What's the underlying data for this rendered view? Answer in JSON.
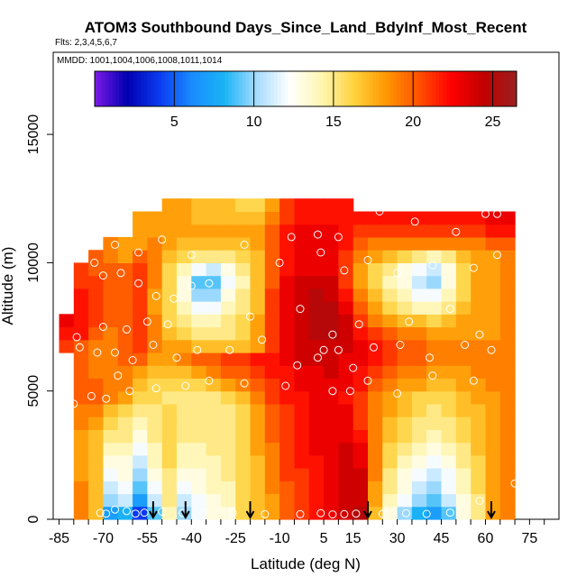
{
  "chart_data": {
    "type": "heatmap",
    "title": "ATOM3 Southbound Days_Since_Land_BdyInf_Most_Recent",
    "subtitle": "Flts: 2,3,4,5,6,7",
    "annotation": "MMDD: 1001,1004,1006,1008,1011,1014",
    "xlabel": "Latitude (deg N)",
    "ylabel": "Altitude (m)",
    "xlim": [
      -87,
      85
    ],
    "ylim": [
      0,
      18200
    ],
    "x_ticks": [
      -85,
      -70,
      -55,
      -40,
      -25,
      -10,
      5,
      15,
      30,
      45,
      60,
      75
    ],
    "x_minor_ticks": [
      -85,
      -80,
      -75,
      -70,
      -65,
      -60,
      -55,
      -50,
      -45,
      -40,
      -35,
      -30,
      -25,
      -20,
      -15,
      -10,
      -5,
      0,
      5,
      10,
      15,
      20,
      25,
      30,
      35,
      40,
      45,
      50,
      55,
      60,
      65,
      70,
      75,
      80
    ],
    "y_ticks": [
      0,
      5000,
      10000,
      15000
    ],
    "colorbar": {
      "ticks": [
        5,
        10,
        15,
        20,
        25
      ],
      "min": 0,
      "max": 26.5,
      "colors": [
        "#7d1ae8",
        "#0000b0",
        "#0a3cf0",
        "#1a8cff",
        "#1ab4f5",
        "#a8dcff",
        "#ffffff",
        "#fff6b0",
        "#ffd23c",
        "#ff9600",
        "#ff5000",
        "#ff0000",
        "#c00000",
        "#9b2020"
      ]
    },
    "lat_bins": [
      -82.5,
      -77.5,
      -72.5,
      -67.5,
      -62.5,
      -57.5,
      -52.5,
      -47.5,
      -42.5,
      -37.5,
      -32.5,
      -27.5,
      -22.5,
      -17.5,
      -12.5,
      -7.5,
      -2.5,
      2.5,
      7.5,
      12.5,
      17.5,
      22.5,
      27.5,
      32.5,
      37.5,
      42.5,
      47.5,
      52.5,
      57.5,
      62.5,
      67.5
    ],
    "alt_bins": [
      250,
      750,
      1250,
      1750,
      2250,
      2750,
      3250,
      3750,
      4250,
      4750,
      5250,
      5750,
      6250,
      6750,
      7250,
      7750,
      8250,
      8750,
      9250,
      9750,
      10250,
      10750,
      11250,
      11750,
      12250
    ],
    "values": [
      [
        null,
        19,
        17,
        7,
        8,
        4,
        9,
        14,
        10,
        12,
        13,
        13,
        16,
        17,
        18,
        20,
        21,
        22,
        23,
        24,
        25,
        17,
        13,
        10,
        8,
        7,
        9,
        13,
        15,
        18,
        19
      ],
      [
        null,
        19,
        17,
        10,
        11,
        7,
        11,
        15,
        11,
        12,
        13,
        14,
        16,
        17,
        18,
        20,
        21,
        22,
        23,
        24,
        24,
        18,
        14,
        12,
        10,
        9,
        11,
        13,
        15,
        18,
        19
      ],
      [
        null,
        19,
        17,
        11,
        12,
        9,
        12,
        15,
        12,
        13,
        14,
        14,
        16,
        17,
        19,
        20,
        21,
        22,
        23,
        24,
        24,
        18,
        15,
        13,
        11,
        10,
        12,
        14,
        16,
        18,
        19
      ],
      [
        null,
        18,
        17,
        12,
        13,
        10,
        13,
        15,
        13,
        13,
        14,
        15,
        16,
        17,
        19,
        21,
        21,
        22,
        23,
        24,
        24,
        19,
        15,
        13,
        12,
        11,
        12,
        14,
        16,
        18,
        19
      ],
      [
        null,
        18,
        17,
        13,
        13,
        11,
        14,
        16,
        14,
        14,
        14,
        15,
        16,
        17,
        19,
        21,
        22,
        22,
        23,
        24,
        23,
        19,
        16,
        14,
        13,
        12,
        13,
        15,
        16,
        18,
        19
      ],
      [
        null,
        18,
        17,
        14,
        14,
        12,
        14,
        16,
        14,
        14,
        15,
        15,
        16,
        18,
        19,
        21,
        22,
        23,
        23,
        24,
        23,
        19,
        16,
        15,
        14,
        13,
        14,
        15,
        17,
        18,
        19
      ],
      [
        null,
        18,
        17,
        15,
        15,
        13,
        15,
        16,
        15,
        15,
        15,
        15,
        16,
        18,
        20,
        21,
        22,
        23,
        23,
        23,
        22,
        19,
        17,
        16,
        15,
        14,
        15,
        16,
        17,
        18,
        19
      ],
      [
        null,
        19,
        18,
        16,
        15,
        14,
        15,
        16,
        15,
        15,
        15,
        15,
        16,
        18,
        20,
        21,
        22,
        23,
        23,
        23,
        21,
        19,
        17,
        16,
        15,
        15,
        15,
        16,
        17,
        18,
        19
      ],
      [
        null,
        19,
        19,
        17,
        16,
        15,
        15,
        16,
        15,
        15,
        15,
        15,
        16,
        18,
        20,
        21,
        22,
        23,
        23,
        23,
        21,
        19,
        18,
        17,
        16,
        15,
        16,
        17,
        17,
        18,
        19
      ],
      [
        null,
        20,
        20,
        19,
        18,
        16,
        16,
        15,
        15,
        15,
        15,
        16,
        17,
        19,
        21,
        22,
        22,
        23,
        23,
        22,
        21,
        19,
        18,
        17,
        16,
        16,
        16,
        17,
        18,
        18,
        19
      ],
      [
        null,
        20,
        20,
        19,
        19,
        17,
        16,
        16,
        16,
        16,
        17,
        18,
        19,
        20,
        21,
        22,
        23,
        23,
        23,
        23,
        22,
        20,
        19,
        18,
        18,
        17,
        17,
        18,
        18,
        19,
        19
      ],
      [
        null,
        20,
        19,
        19,
        19,
        18,
        17,
        17,
        17,
        18,
        19,
        20,
        20,
        21,
        22,
        22,
        23,
        23,
        24,
        23,
        22,
        21,
        20,
        19,
        19,
        18,
        18,
        18,
        19,
        19,
        19
      ],
      [
        null,
        20,
        19,
        19,
        20,
        20,
        18,
        18,
        19,
        20,
        20,
        21,
        21,
        22,
        22,
        23,
        24,
        24,
        24,
        23,
        23,
        22,
        21,
        20,
        20,
        19,
        19,
        19,
        19,
        19,
        19
      ],
      [
        21,
        20,
        19,
        19,
        20,
        21,
        19,
        18,
        18,
        17,
        17,
        17,
        17,
        18,
        21,
        23,
        24,
        24,
        24,
        24,
        23,
        22,
        21,
        20,
        20,
        19,
        19,
        19,
        19,
        19,
        19
      ],
      [
        22,
        22,
        20,
        19,
        20,
        21,
        19,
        17,
        16,
        15,
        15,
        15,
        16,
        18,
        21,
        23,
        24,
        25,
        25,
        24,
        22,
        21,
        20,
        19,
        19,
        18,
        18,
        18,
        18,
        18,
        19
      ],
      [
        23,
        22,
        21,
        20,
        20,
        21,
        19,
        16,
        15,
        14,
        14,
        15,
        16,
        18,
        21,
        23,
        24,
        25,
        25,
        24,
        21,
        19,
        18,
        17,
        17,
        16,
        17,
        18,
        18,
        18,
        19
      ],
      [
        null,
        22,
        21,
        20,
        20,
        21,
        18,
        16,
        14,
        12,
        12,
        14,
        15,
        17,
        21,
        23,
        24,
        25,
        25,
        23,
        20,
        18,
        16,
        15,
        14,
        14,
        15,
        17,
        18,
        18,
        19
      ],
      [
        null,
        22,
        21,
        20,
        20,
        21,
        18,
        16,
        13,
        10,
        10,
        13,
        15,
        17,
        21,
        23,
        24,
        25,
        24,
        22,
        19,
        17,
        15,
        14,
        12,
        12,
        14,
        16,
        18,
        18,
        19
      ],
      [
        null,
        21,
        21,
        20,
        20,
        21,
        19,
        16,
        13,
        9,
        9,
        12,
        14,
        17,
        20,
        23,
        24,
        24,
        24,
        21,
        18,
        16,
        14,
        13,
        11,
        10,
        13,
        16,
        18,
        18,
        19
      ],
      [
        null,
        21,
        20,
        20,
        20,
        21,
        19,
        16,
        14,
        12,
        11,
        13,
        15,
        17,
        20,
        22,
        23,
        23,
        23,
        21,
        18,
        16,
        15,
        13,
        12,
        11,
        13,
        16,
        18,
        18,
        19
      ],
      [
        null,
        null,
        20,
        19,
        18,
        20,
        19,
        17,
        16,
        15,
        15,
        15,
        16,
        17,
        20,
        22,
        23,
        23,
        23,
        21,
        19,
        18,
        17,
        16,
        15,
        14,
        15,
        17,
        18,
        18,
        19
      ],
      [
        null,
        null,
        null,
        19,
        18,
        18,
        19,
        18,
        17,
        17,
        17,
        17,
        17,
        18,
        20,
        22,
        23,
        23,
        23,
        22,
        20,
        19,
        19,
        19,
        19,
        19,
        19,
        19,
        19,
        20,
        20
      ],
      [
        null,
        null,
        null,
        null,
        null,
        18,
        18,
        18,
        18,
        18,
        18,
        18,
        18,
        18,
        20,
        22,
        23,
        23,
        23,
        22,
        21,
        21,
        21,
        21,
        21,
        21,
        21,
        21,
        21,
        22,
        22
      ],
      [
        null,
        null,
        null,
        null,
        null,
        18,
        18,
        18,
        18,
        17,
        17,
        17,
        17,
        17,
        19,
        21,
        22,
        22,
        22,
        22,
        22,
        22,
        22,
        22,
        22,
        22,
        22,
        22,
        22,
        23,
        23
      ],
      [
        null,
        null,
        null,
        null,
        null,
        null,
        null,
        18,
        18,
        17,
        17,
        17,
        16,
        16,
        18,
        21,
        22,
        22,
        22,
        22,
        null,
        null,
        null,
        null,
        null,
        null,
        null,
        null,
        null,
        null,
        null
      ]
    ],
    "observations": [
      [
        -71,
        250
      ],
      [
        -69,
        220
      ],
      [
        -66,
        380
      ],
      [
        -62,
        320
      ],
      [
        -59,
        220
      ],
      [
        -56,
        260
      ],
      [
        -50,
        300
      ],
      [
        -43,
        250
      ],
      [
        -36,
        260
      ],
      [
        -26,
        250
      ],
      [
        -15,
        200
      ],
      [
        -3,
        200
      ],
      [
        4,
        240
      ],
      [
        8,
        190
      ],
      [
        12,
        200
      ],
      [
        16,
        220
      ],
      [
        25,
        210
      ],
      [
        33,
        240
      ],
      [
        40,
        210
      ],
      [
        48,
        260
      ],
      [
        58,
        720
      ],
      [
        70,
        1400
      ],
      [
        -80,
        4500
      ],
      [
        -74,
        4800
      ],
      [
        -69,
        4700
      ],
      [
        -65,
        5600
      ],
      [
        -61,
        5000
      ],
      [
        -52,
        5100
      ],
      [
        -42,
        5200
      ],
      [
        -34,
        5400
      ],
      [
        -22,
        5300
      ],
      [
        -8,
        5200
      ],
      [
        8,
        5000
      ],
      [
        14,
        5000
      ],
      [
        20,
        5400
      ],
      [
        30,
        4900
      ],
      [
        42,
        5600
      ],
      [
        56,
        5400
      ],
      [
        -78,
        6700
      ],
      [
        -72,
        6500
      ],
      [
        -66,
        6500
      ],
      [
        -60,
        6200
      ],
      [
        -53,
        6800
      ],
      [
        -45,
        6300
      ],
      [
        -38,
        6600
      ],
      [
        -27,
        6600
      ],
      [
        -16,
        7000
      ],
      [
        -4,
        6000
      ],
      [
        3,
        6300
      ],
      [
        5,
        6600
      ],
      [
        10,
        6600
      ],
      [
        15,
        5900
      ],
      [
        22,
        6700
      ],
      [
        31,
        6800
      ],
      [
        41,
        6300
      ],
      [
        53,
        6800
      ],
      [
        62,
        6600
      ],
      [
        -79,
        7100
      ],
      [
        -70,
        7500
      ],
      [
        -62,
        7400
      ],
      [
        -55,
        7700
      ],
      [
        -48,
        7600
      ],
      [
        -20,
        7900
      ],
      [
        -3,
        8200
      ],
      [
        8,
        7200
      ],
      [
        17,
        7600
      ],
      [
        34,
        7700
      ],
      [
        48,
        8200
      ],
      [
        58,
        7200
      ],
      [
        -70,
        9500
      ],
      [
        -64,
        9600
      ],
      [
        -58,
        9200
      ],
      [
        -52,
        8700
      ],
      [
        -46,
        8600
      ],
      [
        -40,
        9100
      ],
      [
        -34,
        9200
      ],
      [
        -28,
        9800
      ],
      [
        -10,
        10000
      ],
      [
        4,
        10400
      ],
      [
        12,
        9700
      ],
      [
        20,
        10100
      ],
      [
        30,
        9600
      ],
      [
        42,
        9900
      ],
      [
        56,
        9800
      ],
      [
        64,
        10300
      ],
      [
        -84,
        9900
      ],
      [
        -73,
        10000
      ],
      [
        -66,
        10700
      ],
      [
        -58,
        10400
      ],
      [
        -50,
        10900
      ],
      [
        -40,
        10300
      ],
      [
        -22,
        10700
      ],
      [
        -6,
        11000
      ],
      [
        3,
        11100
      ],
      [
        10,
        11000
      ],
      [
        24,
        12000
      ],
      [
        36,
        11600
      ],
      [
        50,
        11200
      ],
      [
        60,
        11900
      ],
      [
        64,
        11900
      ]
    ],
    "flight_arrows_lat": [
      -53,
      -42,
      -20,
      20,
      62
    ]
  }
}
